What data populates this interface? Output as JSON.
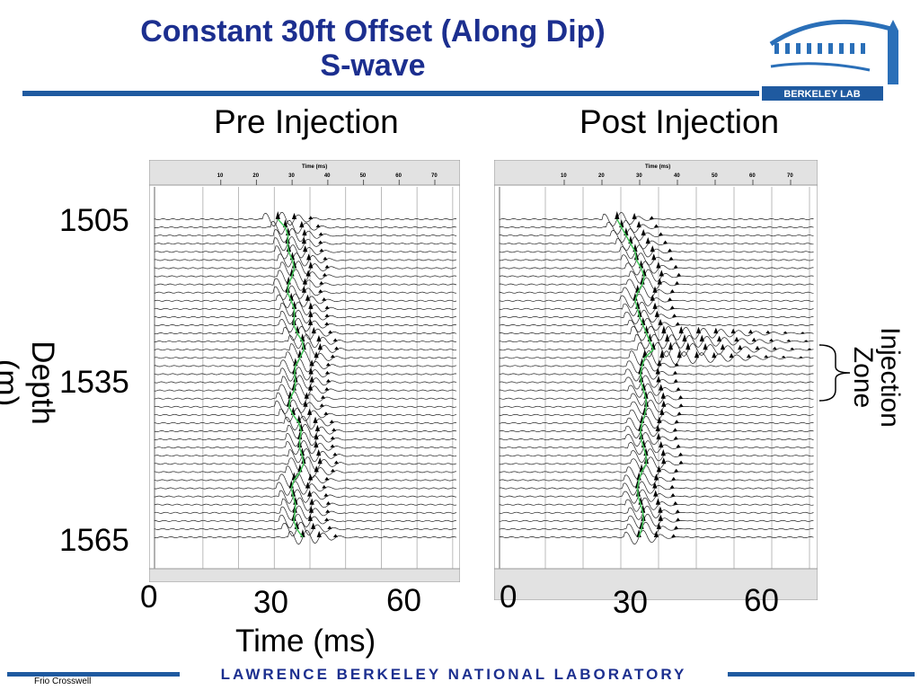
{
  "title": "Constant 30ft Offset (Along Dip)",
  "subtitle": "S-wave",
  "logo_text": "BERKELEY LAB",
  "panels": {
    "pre": {
      "label": "Pre Injection",
      "axis_title": "Time (ms)",
      "ticks": [
        "10",
        "20",
        "30",
        "40",
        "50",
        "60",
        "70"
      ]
    },
    "post": {
      "label": "Post Injection",
      "axis_title": "Time (ms)",
      "ticks": [
        "10",
        "20",
        "30",
        "40",
        "50",
        "60",
        "70"
      ]
    }
  },
  "depth_axis": {
    "label": "Depth (m)",
    "ticks": [
      "1505",
      "1535",
      "1565"
    ]
  },
  "time_axis": {
    "label": "Time (ms)",
    "pre_ticks": [
      "0",
      "30",
      "60"
    ],
    "post_ticks": [
      "0",
      "30",
      "60"
    ]
  },
  "annotation": {
    "line1": "Injection",
    "line2": "Zone"
  },
  "footer": "LAWRENCE BERKELEY NATIONAL LABORATORY",
  "credit": "Frio Crosswell",
  "colors": {
    "title": "#1c2f8f",
    "bar": "#1f5aa0",
    "pick": "#43c95a"
  }
}
